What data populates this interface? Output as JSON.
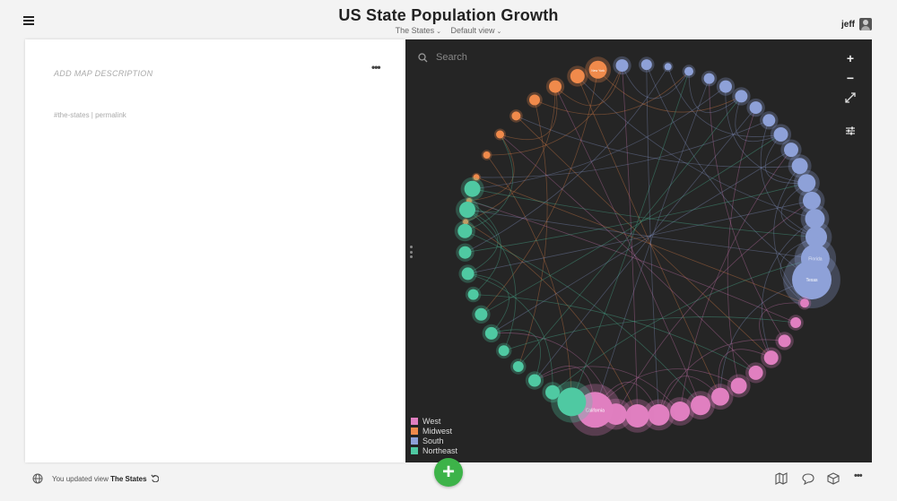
{
  "header": {
    "title": "US State Population Growth",
    "map_selector": "The States",
    "view_selector": "Default view",
    "user_name": "jeff"
  },
  "description_panel": {
    "placeholder": "ADD MAP DESCRIPTION",
    "tag": "#the-states",
    "separator": " | ",
    "permalink": "permalink"
  },
  "map": {
    "search_placeholder": "Search",
    "legend": [
      {
        "label": "West",
        "color": "#e07fc0"
      },
      {
        "label": "Midwest",
        "color": "#f08a4b"
      },
      {
        "label": "South",
        "color": "#8ea1d8"
      },
      {
        "label": "Northeast",
        "color": "#4fc9a2"
      }
    ],
    "node_labels": {
      "california": "California",
      "texas": "Texas",
      "florida": "Florida",
      "new_york": "New York"
    }
  },
  "footer": {
    "activity_prefix": "You updated view",
    "activity_target": "The States"
  },
  "icons": [
    "menu-icon",
    "chevron-down-icon",
    "avatar",
    "search-icon",
    "zoom-in-icon",
    "zoom-out-icon",
    "fit-screen-icon",
    "settings-sliders-icon",
    "globe-icon",
    "undo-icon",
    "add-icon",
    "map-icon",
    "comment-icon",
    "cube-icon",
    "more-icon"
  ]
}
